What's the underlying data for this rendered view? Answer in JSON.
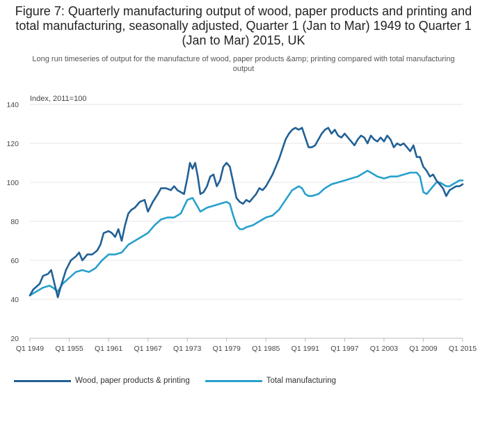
{
  "title": "Figure 7: Quarterly manufacturing output of wood, paper products and printing and total manufacturing, seasonally adjusted, Quarter 1 (Jan to Mar) 1949 to Quarter 1 (Jan to Mar) 2015, UK",
  "subtitle": "Long run timeseries of output for the manufacture of wood, paper products &amp; printing compared with total manufacturing output",
  "unit_label": "Index, 2011=100",
  "colors": {
    "wood": "#206095",
    "total": "#27a0cc",
    "grid": "#e4e4e4"
  },
  "chart_data": {
    "type": "line",
    "title": "Figure 7: Quarterly manufacturing output of wood, paper products and printing and total manufacturing, seasonally adjusted, Quarter 1 (Jan to Mar) 1949 to Quarter 1 (Jan to Mar) 2015, UK",
    "ylabel": "Index, 2011=100",
    "xlabel": "",
    "ylim": [
      20,
      140
    ],
    "xlim": [
      1949,
      2015
    ],
    "y_ticks": [
      20,
      40,
      60,
      80,
      100,
      120,
      140
    ],
    "x_ticks": [
      {
        "value": 1949,
        "label": "Q1 1949"
      },
      {
        "value": 1955,
        "label": "Q1 1955"
      },
      {
        "value": 1961,
        "label": "Q1 1961"
      },
      {
        "value": 1967,
        "label": "Q1 1967"
      },
      {
        "value": 1973,
        "label": "Q1 1973"
      },
      {
        "value": 1979,
        "label": "Q1 1979"
      },
      {
        "value": 1985,
        "label": "Q1 1985"
      },
      {
        "value": 1991,
        "label": "Q1 1991"
      },
      {
        "value": 1997,
        "label": "Q1 1997"
      },
      {
        "value": 2003,
        "label": "Q1 2003"
      },
      {
        "value": 2009,
        "label": "Q1 2009"
      },
      {
        "value": 2015,
        "label": "Q1 2015"
      }
    ],
    "grid": true,
    "legend_position": "bottom-left",
    "series": [
      {
        "name": "Wood, paper products & printing",
        "points": [
          [
            1949.0,
            42
          ],
          [
            1949.5,
            45
          ],
          [
            1950.5,
            48
          ],
          [
            1951.0,
            52
          ],
          [
            1951.75,
            53
          ],
          [
            1952.25,
            55
          ],
          [
            1952.75,
            48
          ],
          [
            1953.25,
            41
          ],
          [
            1953.75,
            47
          ],
          [
            1954.5,
            55
          ],
          [
            1955.25,
            60
          ],
          [
            1956.0,
            62
          ],
          [
            1956.5,
            64
          ],
          [
            1957.0,
            60
          ],
          [
            1957.75,
            63
          ],
          [
            1958.5,
            63
          ],
          [
            1959.25,
            65
          ],
          [
            1959.75,
            68
          ],
          [
            1960.25,
            74
          ],
          [
            1961.0,
            75
          ],
          [
            1961.5,
            74
          ],
          [
            1962.0,
            72
          ],
          [
            1962.5,
            76
          ],
          [
            1963.0,
            70
          ],
          [
            1963.5,
            78
          ],
          [
            1964.0,
            84
          ],
          [
            1964.5,
            86
          ],
          [
            1965.0,
            87
          ],
          [
            1965.75,
            90
          ],
          [
            1966.5,
            91
          ],
          [
            1967.0,
            85
          ],
          [
            1967.75,
            90
          ],
          [
            1968.5,
            94
          ],
          [
            1969.0,
            97
          ],
          [
            1969.75,
            97
          ],
          [
            1970.5,
            96
          ],
          [
            1971.0,
            98
          ],
          [
            1971.5,
            96
          ],
          [
            1972.0,
            95
          ],
          [
            1972.5,
            94
          ],
          [
            1973.0,
            102
          ],
          [
            1973.4,
            110
          ],
          [
            1973.8,
            107
          ],
          [
            1974.2,
            110
          ],
          [
            1974.6,
            103
          ],
          [
            1975.0,
            94
          ],
          [
            1975.5,
            95
          ],
          [
            1976.0,
            98
          ],
          [
            1976.5,
            103
          ],
          [
            1977.0,
            104
          ],
          [
            1977.5,
            98
          ],
          [
            1978.0,
            101
          ],
          [
            1978.5,
            108
          ],
          [
            1979.0,
            110
          ],
          [
            1979.5,
            108
          ],
          [
            1980.0,
            100
          ],
          [
            1980.5,
            92
          ],
          [
            1981.0,
            90
          ],
          [
            1981.5,
            89
          ],
          [
            1982.0,
            91
          ],
          [
            1982.5,
            90
          ],
          [
            1983.0,
            92
          ],
          [
            1983.5,
            94
          ],
          [
            1984.0,
            97
          ],
          [
            1984.5,
            96
          ],
          [
            1985.0,
            98
          ],
          [
            1985.5,
            101
          ],
          [
            1986.0,
            104
          ],
          [
            1986.5,
            108
          ],
          [
            1987.0,
            112
          ],
          [
            1987.5,
            117
          ],
          [
            1988.0,
            122
          ],
          [
            1988.5,
            125
          ],
          [
            1989.0,
            127
          ],
          [
            1989.5,
            128
          ],
          [
            1990.0,
            127
          ],
          [
            1990.5,
            128
          ],
          [
            1991.0,
            123
          ],
          [
            1991.5,
            118
          ],
          [
            1992.0,
            118
          ],
          [
            1992.5,
            119
          ],
          [
            1993.0,
            122
          ],
          [
            1993.5,
            125
          ],
          [
            1994.0,
            127
          ],
          [
            1994.5,
            128
          ],
          [
            1995.0,
            125
          ],
          [
            1995.5,
            127
          ],
          [
            1996.0,
            124
          ],
          [
            1996.5,
            123
          ],
          [
            1997.0,
            125
          ],
          [
            1997.5,
            123
          ],
          [
            1998.0,
            121
          ],
          [
            1998.5,
            119
          ],
          [
            1999.0,
            122
          ],
          [
            1999.5,
            124
          ],
          [
            2000.0,
            123
          ],
          [
            2000.5,
            120
          ],
          [
            2001.0,
            124
          ],
          [
            2001.5,
            122
          ],
          [
            2002.0,
            121
          ],
          [
            2002.5,
            123
          ],
          [
            2003.0,
            121
          ],
          [
            2003.5,
            124
          ],
          [
            2004.0,
            122
          ],
          [
            2004.5,
            118
          ],
          [
            2005.0,
            120
          ],
          [
            2005.5,
            119
          ],
          [
            2006.0,
            120
          ],
          [
            2006.5,
            118
          ],
          [
            2007.0,
            116
          ],
          [
            2007.5,
            119
          ],
          [
            2008.0,
            113
          ],
          [
            2008.5,
            113
          ],
          [
            2009.0,
            108
          ],
          [
            2009.5,
            106
          ],
          [
            2010.0,
            103
          ],
          [
            2010.5,
            104
          ],
          [
            2011.0,
            101
          ],
          [
            2011.5,
            99
          ],
          [
            2012.0,
            97
          ],
          [
            2012.5,
            93
          ],
          [
            2013.0,
            96
          ],
          [
            2013.5,
            97
          ],
          [
            2014.0,
            98
          ],
          [
            2014.5,
            98
          ],
          [
            2015.0,
            99
          ]
        ]
      },
      {
        "name": "Total manufacturing",
        "points": [
          [
            1949.0,
            42
          ],
          [
            1950.0,
            44
          ],
          [
            1951.0,
            46
          ],
          [
            1952.0,
            47
          ],
          [
            1952.5,
            46
          ],
          [
            1953.25,
            44
          ],
          [
            1954.0,
            48
          ],
          [
            1955.0,
            51
          ],
          [
            1956.0,
            54
          ],
          [
            1957.0,
            55
          ],
          [
            1958.0,
            54
          ],
          [
            1959.0,
            56
          ],
          [
            1960.0,
            60
          ],
          [
            1961.0,
            63
          ],
          [
            1962.0,
            63
          ],
          [
            1963.0,
            64
          ],
          [
            1964.0,
            68
          ],
          [
            1965.0,
            70
          ],
          [
            1966.0,
            72
          ],
          [
            1967.0,
            74
          ],
          [
            1968.0,
            78
          ],
          [
            1969.0,
            81
          ],
          [
            1970.0,
            82
          ],
          [
            1971.0,
            82
          ],
          [
            1972.0,
            84
          ],
          [
            1973.0,
            91
          ],
          [
            1973.8,
            92
          ],
          [
            1974.5,
            88
          ],
          [
            1975.0,
            85
          ],
          [
            1976.0,
            87
          ],
          [
            1977.0,
            88
          ],
          [
            1978.0,
            89
          ],
          [
            1979.0,
            90
          ],
          [
            1979.5,
            89
          ],
          [
            1980.0,
            83
          ],
          [
            1980.5,
            78
          ],
          [
            1981.0,
            76
          ],
          [
            1981.5,
            76
          ],
          [
            1982.0,
            77
          ],
          [
            1983.0,
            78
          ],
          [
            1984.0,
            80
          ],
          [
            1985.0,
            82
          ],
          [
            1986.0,
            83
          ],
          [
            1987.0,
            86
          ],
          [
            1988.0,
            91
          ],
          [
            1989.0,
            96
          ],
          [
            1990.0,
            98
          ],
          [
            1990.5,
            97
          ],
          [
            1991.0,
            94
          ],
          [
            1991.5,
            93
          ],
          [
            1992.0,
            93
          ],
          [
            1993.0,
            94
          ],
          [
            1994.0,
            97
          ],
          [
            1995.0,
            99
          ],
          [
            1996.0,
            100
          ],
          [
            1997.0,
            101
          ],
          [
            1998.0,
            102
          ],
          [
            1999.0,
            103
          ],
          [
            2000.0,
            105
          ],
          [
            2000.5,
            106
          ],
          [
            2001.0,
            105
          ],
          [
            2002.0,
            103
          ],
          [
            2003.0,
            102
          ],
          [
            2004.0,
            103
          ],
          [
            2005.0,
            103
          ],
          [
            2006.0,
            104
          ],
          [
            2007.0,
            105
          ],
          [
            2008.0,
            105
          ],
          [
            2008.5,
            103
          ],
          [
            2009.0,
            95
          ],
          [
            2009.5,
            94
          ],
          [
            2010.0,
            96
          ],
          [
            2010.5,
            98
          ],
          [
            2011.0,
            100
          ],
          [
            2011.5,
            100
          ],
          [
            2012.0,
            99
          ],
          [
            2012.5,
            98
          ],
          [
            2013.0,
            98
          ],
          [
            2013.5,
            99
          ],
          [
            2014.0,
            100
          ],
          [
            2014.5,
            101
          ],
          [
            2015.0,
            101
          ]
        ]
      }
    ]
  }
}
